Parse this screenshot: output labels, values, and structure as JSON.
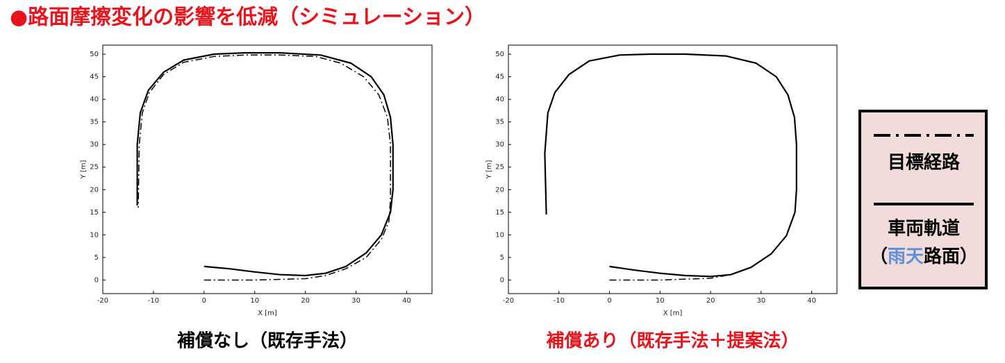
{
  "title": "●路面摩擦変化の影響を低減（シミュレーション）",
  "title_color": "#e8131b",
  "legend": {
    "target": "目標経路",
    "trajectory": "車両軌道",
    "condition": [
      "（",
      "雨天",
      "路面）"
    ],
    "highlight_color": "#5b8fd6",
    "background": "#f2dcdb"
  },
  "chart_data": [
    {
      "type": "line",
      "caption": "補償なし（既存手法）",
      "caption_color": "#000000",
      "xlabel": "X [m]",
      "ylabel": "Y [m]",
      "xlim": [
        -20,
        45
      ],
      "ylim": [
        -3,
        52
      ],
      "xticks": [
        -20,
        -10,
        0,
        10,
        20,
        30,
        40
      ],
      "yticks": [
        0,
        5,
        10,
        15,
        20,
        25,
        30,
        35,
        40,
        45,
        50
      ],
      "series": [
        {
          "style": "dashdot",
          "color": "#000000",
          "x": [
            0,
            10,
            20,
            24,
            28,
            32,
            35,
            36.5,
            36.8,
            36.8,
            36.2,
            34.5,
            31.5,
            27,
            22,
            15,
            8,
            2,
            -4,
            -8,
            -10.8,
            -12.2,
            -12.8,
            -13
          ],
          "values": [
            0,
            0,
            0.3,
            1,
            2.5,
            5,
            9,
            13,
            18,
            30,
            36,
            41,
            45,
            48,
            49.5,
            49.8,
            49.8,
            49.5,
            48.2,
            45.5,
            41.5,
            37,
            30,
            16
          ]
        },
        {
          "style": "solid",
          "color": "#000000",
          "x": [
            0,
            5,
            10,
            15,
            20,
            24,
            28,
            32,
            35,
            36.8,
            37.3,
            37.3,
            36.8,
            35.5,
            33,
            29,
            23,
            15,
            8,
            2,
            -4,
            -8,
            -11,
            -12.6,
            -13.2,
            -13.2
          ],
          "values": [
            3,
            2.5,
            1.8,
            1.2,
            1,
            1.5,
            3,
            6,
            10,
            15,
            20,
            30,
            36,
            41,
            45,
            48,
            49.8,
            50.3,
            50.3,
            50,
            48.7,
            46,
            42,
            37,
            30,
            16.5
          ]
        }
      ]
    },
    {
      "type": "line",
      "caption": "補償あり（既存手法＋提案法）",
      "caption_color": "#e8131b",
      "xlabel": "X [m]",
      "ylabel": "Y [m]",
      "xlim": [
        -20,
        45
      ],
      "ylim": [
        -3,
        52
      ],
      "xticks": [
        -20,
        -10,
        0,
        10,
        20,
        30,
        40
      ],
      "yticks": [
        0,
        5,
        10,
        15,
        20,
        25,
        30,
        35,
        40,
        45,
        50
      ],
      "series": [
        {
          "style": "dashdot",
          "color": "#000000",
          "x": [
            0,
            10,
            20,
            24,
            28,
            32,
            35,
            36.7,
            37,
            37,
            36.6,
            35.3,
            33,
            29,
            23,
            15,
            8,
            2,
            -4,
            -8,
            -10.8,
            -12.2,
            -12.8,
            -12.5
          ],
          "values": [
            0,
            0,
            0.4,
            1.2,
            2.8,
            5.8,
            9.8,
            15,
            20,
            30,
            36,
            41,
            45,
            48,
            49.6,
            50,
            50,
            49.8,
            48.5,
            45.5,
            41.5,
            37,
            28,
            15
          ]
        },
        {
          "style": "solid",
          "color": "#000000",
          "x": [
            0,
            5,
            10,
            15,
            20,
            24,
            28,
            32,
            35,
            36.7,
            37,
            37,
            36.6,
            35.3,
            33,
            29,
            23,
            15,
            8,
            2,
            -4,
            -8,
            -10.8,
            -12.2,
            -12.8,
            -12.5
          ],
          "values": [
            3,
            2.2,
            1.5,
            1,
            0.8,
            1.2,
            2.8,
            5.8,
            9.8,
            15,
            20,
            30,
            36,
            41,
            45,
            48,
            49.6,
            50,
            50,
            49.8,
            48.5,
            45.5,
            41.5,
            37,
            28,
            14.5
          ]
        }
      ]
    }
  ]
}
